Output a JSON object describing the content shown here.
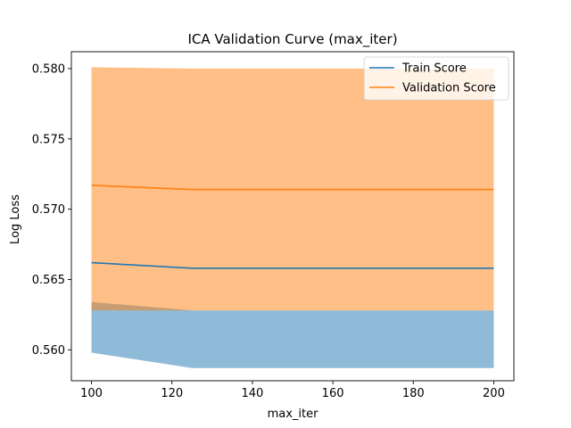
{
  "chart_data": {
    "type": "line",
    "title": "ICA Validation Curve (max_iter)",
    "xlabel": "max_iter",
    "ylabel": "Log Loss",
    "x": [
      100,
      125,
      150,
      175,
      200
    ],
    "xlim": [
      95,
      205
    ],
    "ylim": [
      0.5578,
      0.5812
    ],
    "xticks": [
      100,
      120,
      140,
      160,
      180,
      200
    ],
    "xtick_labels": [
      "100",
      "120",
      "140",
      "160",
      "180",
      "200"
    ],
    "yticks": [
      0.56,
      0.565,
      0.57,
      0.575,
      0.58
    ],
    "ytick_labels": [
      "0.560",
      "0.565",
      "0.570",
      "0.575",
      "0.580"
    ],
    "grid": false,
    "legend_position": "top-right",
    "series": [
      {
        "name": "Train Score",
        "color": "#1f77b4",
        "values": [
          0.5662,
          0.5658,
          0.5658,
          0.5658,
          0.5658
        ],
        "band_lower": [
          0.5598,
          0.5587,
          0.5587,
          0.5587,
          0.5587
        ],
        "band_upper": [
          0.5634,
          0.5628,
          0.5628,
          0.5628,
          0.5628
        ]
      },
      {
        "name": "Validation Score",
        "color": "#ff7f0e",
        "values": [
          0.5717,
          0.5714,
          0.5714,
          0.5714,
          0.5714
        ],
        "band_lower": [
          0.5628,
          0.5628,
          0.5628,
          0.5628,
          0.5628
        ],
        "band_upper": [
          0.5801,
          0.58,
          0.58,
          0.58,
          0.58
        ]
      }
    ]
  }
}
